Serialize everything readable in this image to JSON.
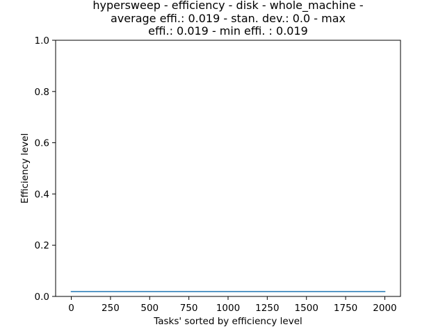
{
  "chart_data": {
    "type": "line",
    "title_lines": [
      "hypersweep - efficiency - disk - whole_machine -",
      "average effi.: 0.019 - stan. dev.: 0.0 - max",
      "effi.: 0.019 - min effi. : 0.019"
    ],
    "xlabel": "Tasks' sorted by efficiency level",
    "ylabel": "Efficiency level",
    "xlim": [
      -100,
      2100
    ],
    "ylim": [
      0.0,
      1.0
    ],
    "x_ticks": [
      0,
      250,
      500,
      750,
      1000,
      1250,
      1500,
      1750,
      2000
    ],
    "y_ticks": [
      0.0,
      0.2,
      0.4,
      0.6,
      0.8,
      1.0
    ],
    "x_tick_labels": [
      "0",
      "250",
      "500",
      "750",
      "1000",
      "1250",
      "1500",
      "1750",
      "2000"
    ],
    "y_tick_labels": [
      "0.0",
      "0.2",
      "0.4",
      "0.6",
      "0.8",
      "1.0"
    ],
    "grid": false,
    "series": [
      {
        "color": "#1f77b4",
        "x": [
          0,
          2000
        ],
        "y": [
          0.019,
          0.019
        ]
      }
    ]
  }
}
